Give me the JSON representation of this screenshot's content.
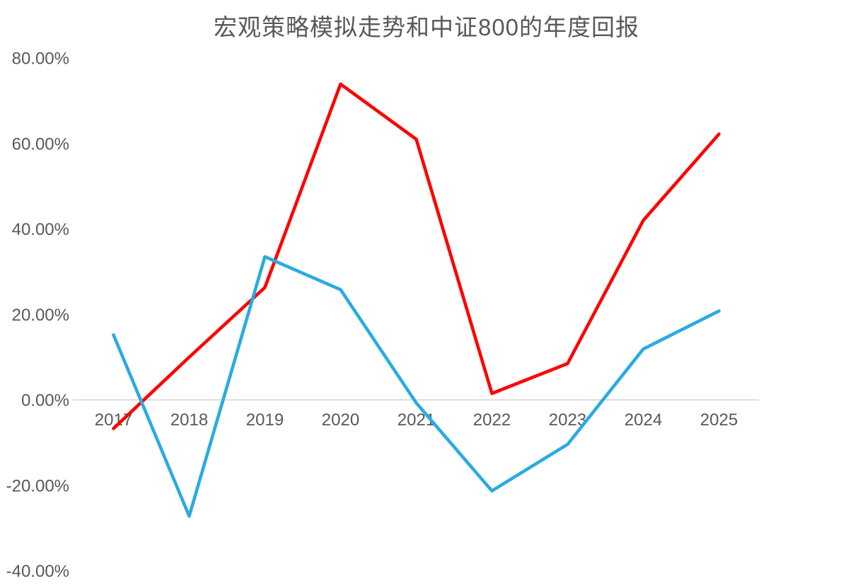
{
  "chart_data": {
    "type": "line",
    "title": "宏观策略模拟走势和中证800的年度回报",
    "categories": [
      "2017",
      "2018",
      "2019",
      "2020",
      "2021",
      "2022",
      "2023",
      "2024",
      "2025"
    ],
    "series": [
      {
        "name": "宏观策略模拟走势",
        "color": "#FF0000",
        "values": [
          -6.7,
          10.0,
          26.3,
          73.9,
          61.0,
          1.5,
          8.5,
          42.0,
          62.2
        ]
      },
      {
        "name": "中证800",
        "color": "#29ABE2",
        "values": [
          15.2,
          -27.2,
          33.5,
          25.8,
          -0.7,
          -21.3,
          -10.4,
          11.9,
          20.8
        ]
      }
    ],
    "ylabel": "",
    "xlabel": "",
    "ylim": [
      -40,
      80
    ],
    "y_ticks": [
      80,
      60,
      40,
      20,
      0,
      -20,
      -40
    ],
    "y_tick_labels": [
      "80.00%",
      "60.00%",
      "40.00%",
      "20.00%",
      "0.00%",
      "-20.00%",
      "-40.00%"
    ],
    "legend": "none",
    "grid": "off",
    "axis_line_color": "#D9D9D9",
    "label_color": "#595959",
    "title_color": "#595959",
    "line_width": 4.6
  }
}
